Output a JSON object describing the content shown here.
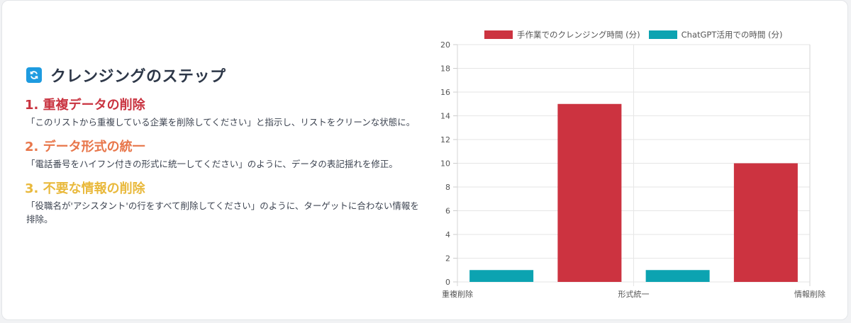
{
  "heading": {
    "title": "クレンジングのステップ",
    "icon": "refresh-icon"
  },
  "steps": [
    {
      "title": "1. 重複データの削除",
      "color": "#c93340",
      "description": "「このリストから重複している企業を削除してください」と指示し、リストをクリーンな状態に。"
    },
    {
      "title": "2. データ形式の統一",
      "color": "#e8764a",
      "description": "「電話番号をハイフン付きの形式に統一してください」のように、データの表記揺れを修正。"
    },
    {
      "title": "3. 不要な情報の削除",
      "color": "#e9b93c",
      "description": "「役職名が'アシスタント'の行をすべて削除してください」のように、ターゲットに合わない情報を排除。"
    }
  ],
  "chart_data": {
    "type": "bar",
    "categories": [
      "重複削除",
      "形式統一",
      "情報削除"
    ],
    "series": [
      {
        "name": "手作業でのクレンジング時間 (分)",
        "color": "#cc3340",
        "values": [
          null,
          15,
          10
        ]
      },
      {
        "name": "ChatGPT活用での時間 (分)",
        "color": "#0ca3b1",
        "values": [
          1,
          1,
          null
        ]
      }
    ],
    "ylim": [
      0,
      20
    ],
    "yticks": [
      0,
      2,
      4,
      6,
      8,
      10,
      12,
      14,
      16,
      18,
      20
    ],
    "grid": true,
    "legend": "top"
  }
}
